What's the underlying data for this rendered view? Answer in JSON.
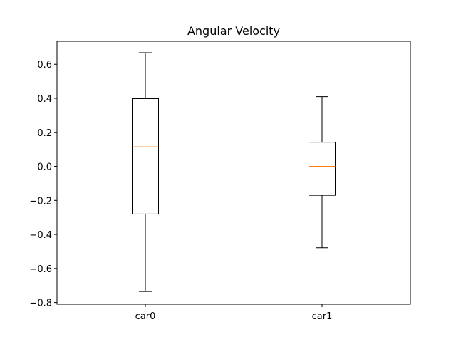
{
  "chart_data": {
    "type": "box",
    "title": "Angular Velocity",
    "xlabel": "",
    "ylabel": "",
    "ylim": [
      -0.81,
      0.735
    ],
    "yticks": [
      -0.8,
      -0.6,
      -0.4,
      -0.2,
      0.0,
      0.2,
      0.4,
      0.6
    ],
    "ytick_labels": [
      "−0.8",
      "−0.6",
      "−0.4",
      "−0.2",
      "0.0",
      "0.2",
      "0.4",
      "0.6"
    ],
    "categories": [
      "car0",
      "car1"
    ],
    "boxes": [
      {
        "label": "car0",
        "whisker_low": -0.735,
        "q1": -0.28,
        "median": 0.115,
        "q3": 0.398,
        "whisker_high": 0.668
      },
      {
        "label": "car1",
        "whisker_low": -0.478,
        "q1": -0.17,
        "median": 0.0,
        "q3": 0.142,
        "whisker_high": 0.41
      }
    ],
    "grid": false,
    "colors": {
      "box": "#000000",
      "median": "#ff7f0e",
      "background": "#ffffff"
    }
  }
}
